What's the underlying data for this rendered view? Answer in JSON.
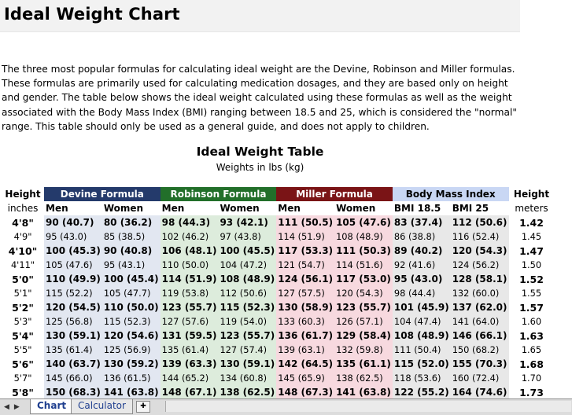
{
  "title": "Ideal Weight Chart",
  "intro": "The three most popular formulas for calculating ideal weight are the Devine, Robinson and Miller formulas. These formulas are primarily used for calculating medication dosages, and they are based only on height and gender. The table below shows the ideal weight calculated using these formulas as well as the weight associated with the Body Mass Index (BMI) ranging between 18.5 and 25, which is considered the \"normal\" range. This table should only be used as a general guide, and does not apply to children.",
  "table": {
    "title": "Ideal Weight Table",
    "subtitle": "Weights in lbs (kg)",
    "height_header": "Height",
    "height_meters_header": "Height",
    "groups": {
      "devine": "Devine Formula",
      "robinson": "Robinson Formula",
      "miller": "Miller Formula",
      "bmi": "Body Mass Index"
    },
    "subheaders": {
      "inches": "inches",
      "men1": "Men",
      "women1": "Women",
      "men2": "Men",
      "women2": "Women",
      "men3": "Men",
      "women3": "Women",
      "bmi185": "BMI 18.5",
      "bmi25": "BMI 25",
      "meters": "meters"
    },
    "rows": [
      {
        "bold": true,
        "h": "4'8\"",
        "dm": "90 (40.7)",
        "dw": "80 (36.2)",
        "rm": "98 (44.3)",
        "rw": "93 (42.1)",
        "mm": "111 (50.5)",
        "mw": "105 (47.6)",
        "b1": "83 (37.4)",
        "b2": "112 (50.6)",
        "m": "1.42"
      },
      {
        "bold": false,
        "h": "4'9\"",
        "dm": "95 (43.0)",
        "dw": "85 (38.5)",
        "rm": "102 (46.2)",
        "rw": "97 (43.8)",
        "mm": "114 (51.9)",
        "mw": "108 (48.9)",
        "b1": "86 (38.8)",
        "b2": "116 (52.4)",
        "m": "1.45"
      },
      {
        "bold": true,
        "h": "4'10\"",
        "dm": "100 (45.3)",
        "dw": "90 (40.8)",
        "rm": "106 (48.1)",
        "rw": "100 (45.5)",
        "mm": "117 (53.3)",
        "mw": "111 (50.3)",
        "b1": "89 (40.2)",
        "b2": "120 (54.3)",
        "m": "1.47"
      },
      {
        "bold": false,
        "h": "4'11\"",
        "dm": "105 (47.6)",
        "dw": "95 (43.1)",
        "rm": "110 (50.0)",
        "rw": "104 (47.2)",
        "mm": "121 (54.7)",
        "mw": "114 (51.6)",
        "b1": "92 (41.6)",
        "b2": "124 (56.2)",
        "m": "1.50"
      },
      {
        "bold": true,
        "h": "5'0\"",
        "dm": "110 (49.9)",
        "dw": "100 (45.4)",
        "rm": "114 (51.9)",
        "rw": "108 (48.9)",
        "mm": "124 (56.1)",
        "mw": "117 (53.0)",
        "b1": "95 (43.0)",
        "b2": "128 (58.1)",
        "m": "1.52"
      },
      {
        "bold": false,
        "h": "5'1\"",
        "dm": "115 (52.2)",
        "dw": "105 (47.7)",
        "rm": "119 (53.8)",
        "rw": "112 (50.6)",
        "mm": "127 (57.5)",
        "mw": "120 (54.3)",
        "b1": "98 (44.4)",
        "b2": "132 (60.0)",
        "m": "1.55"
      },
      {
        "bold": true,
        "h": "5'2\"",
        "dm": "120 (54.5)",
        "dw": "110 (50.0)",
        "rm": "123 (55.7)",
        "rw": "115 (52.3)",
        "mm": "130 (58.9)",
        "mw": "123 (55.7)",
        "b1": "101 (45.9)",
        "b2": "137 (62.0)",
        "m": "1.57"
      },
      {
        "bold": false,
        "h": "5'3\"",
        "dm": "125 (56.8)",
        "dw": "115 (52.3)",
        "rm": "127 (57.6)",
        "rw": "119 (54.0)",
        "mm": "133 (60.3)",
        "mw": "126 (57.1)",
        "b1": "104 (47.4)",
        "b2": "141 (64.0)",
        "m": "1.60"
      },
      {
        "bold": true,
        "h": "5'4\"",
        "dm": "130 (59.1)",
        "dw": "120 (54.6)",
        "rm": "131 (59.5)",
        "rw": "123 (55.7)",
        "mm": "136 (61.7)",
        "mw": "129 (58.4)",
        "b1": "108 (48.9)",
        "b2": "146 (66.1)",
        "m": "1.63"
      },
      {
        "bold": false,
        "h": "5'5\"",
        "dm": "135 (61.4)",
        "dw": "125 (56.9)",
        "rm": "135 (61.4)",
        "rw": "127 (57.4)",
        "mm": "139 (63.1)",
        "mw": "132 (59.8)",
        "b1": "111 (50.4)",
        "b2": "150 (68.2)",
        "m": "1.65"
      },
      {
        "bold": true,
        "h": "5'6\"",
        "dm": "140 (63.7)",
        "dw": "130 (59.2)",
        "rm": "139 (63.3)",
        "rw": "130 (59.1)",
        "mm": "142 (64.5)",
        "mw": "135 (61.1)",
        "b1": "115 (52.0)",
        "b2": "155 (70.3)",
        "m": "1.68"
      },
      {
        "bold": false,
        "h": "5'7\"",
        "dm": "145 (66.0)",
        "dw": "136 (61.5)",
        "rm": "144 (65.2)",
        "rw": "134 (60.8)",
        "mm": "145 (65.9)",
        "mw": "138 (62.5)",
        "b1": "118 (53.6)",
        "b2": "160 (72.4)",
        "m": "1.70"
      },
      {
        "bold": true,
        "h": "5'8\"",
        "dm": "150 (68.3)",
        "dw": "141 (63.8)",
        "rm": "148 (67.1)",
        "rw": "138 (62.5)",
        "mm": "148 (67.3)",
        "mw": "141 (63.8)",
        "b1": "122 (55.2)",
        "b2": "164 (74.6)",
        "m": "1.73"
      }
    ]
  },
  "sheet_tabs": {
    "nav_first": "◀",
    "nav_last": "▶",
    "tabs": [
      {
        "label": "Chart",
        "active": true
      },
      {
        "label": "Calculator",
        "active": false
      }
    ],
    "insert_icon": "new-sheet-icon"
  },
  "colors": {
    "devine_header": "#243a6b",
    "robinson_header": "#226f2a",
    "miller_header": "#7a1416",
    "bmi_header": "#c9d7f4",
    "devine_cells": "#e2e7f1",
    "robinson_cells": "#ddecdc",
    "miller_cells": "#f7d9df",
    "bmi_cells": "#e8e8e8"
  }
}
